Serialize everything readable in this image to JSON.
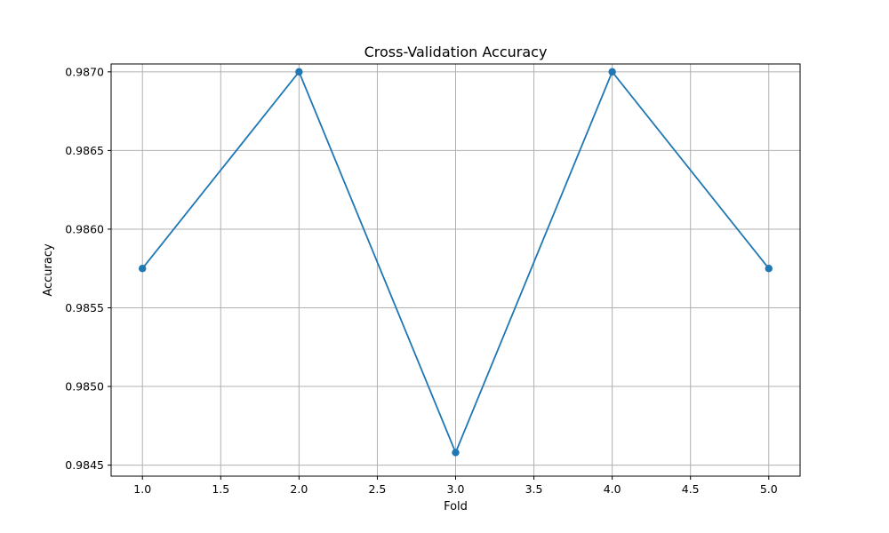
{
  "chart_data": {
    "type": "line",
    "title": "Cross-Validation Accuracy",
    "xlabel": "Fold",
    "ylabel": "Accuracy",
    "xlim": [
      0.8,
      5.2
    ],
    "ylim": [
      0.98443,
      0.98705
    ],
    "x_ticks": [
      1.0,
      1.5,
      2.0,
      2.5,
      3.0,
      3.5,
      4.0,
      4.5,
      5.0
    ],
    "x_tick_labels": [
      "1.0",
      "1.5",
      "2.0",
      "2.5",
      "3.0",
      "3.5",
      "4.0",
      "4.5",
      "5.0"
    ],
    "y_ticks": [
      0.9845,
      0.985,
      0.9855,
      0.986,
      0.9865,
      0.987
    ],
    "y_tick_labels": [
      "0.9845",
      "0.9850",
      "0.9855",
      "0.9860",
      "0.9865",
      "0.9870"
    ],
    "grid": true,
    "line_color": "#1f77b4",
    "marker": "circle",
    "series": [
      {
        "x": [
          1,
          2,
          3,
          4,
          5
        ],
        "values": [
          0.98575,
          0.987,
          0.98458,
          0.987,
          0.98575
        ]
      }
    ]
  }
}
